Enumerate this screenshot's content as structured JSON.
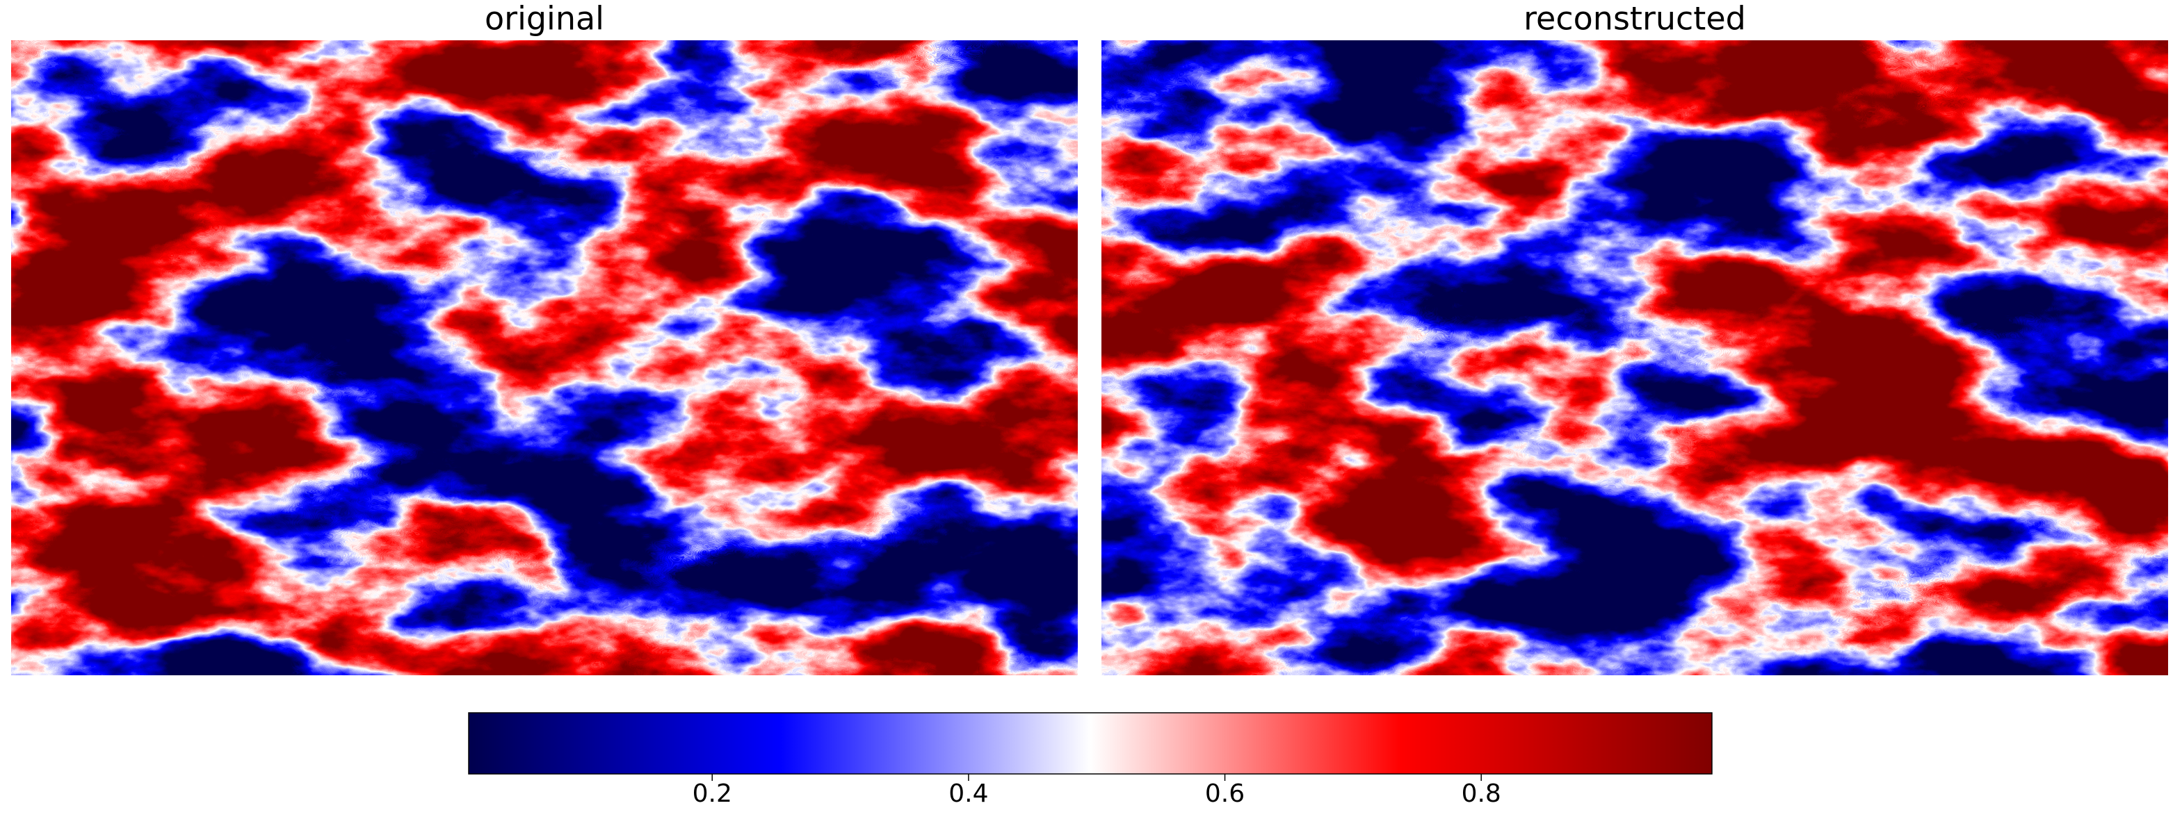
{
  "chart_data": [
    {
      "type": "image",
      "title": "original"
    },
    {
      "type": "image",
      "title": "reconstructed"
    },
    {
      "type": "colorbar",
      "colormap": "seismic",
      "xlim": [
        0.01,
        0.98
      ],
      "xticks": [
        0.2,
        0.4,
        0.6,
        0.8
      ]
    }
  ]
}
